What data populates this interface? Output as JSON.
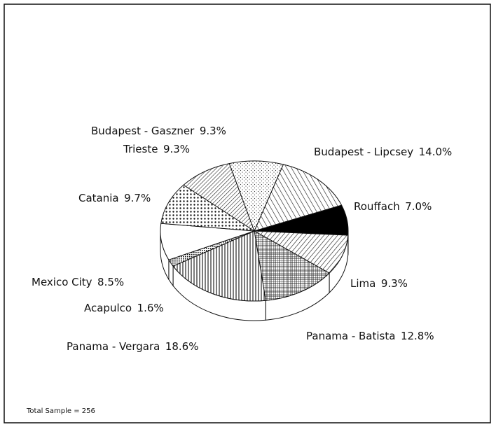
{
  "chart_data": {
    "type": "pie",
    "categories": [
      "Budapest - Lipcsey",
      "Rouffach",
      "Lima",
      "Panama - Batista",
      "Panama - Vergara",
      "Acapulco",
      "Mexico City",
      "Catania",
      "Trieste",
      "Budapest - Gaszner"
    ],
    "values": [
      14.0,
      7.0,
      9.3,
      12.8,
      18.6,
      1.6,
      8.5,
      9.7,
      9.3,
      9.3
    ],
    "value_labels": [
      "14.0%",
      "7.0%",
      "9.3%",
      "12.8%",
      "18.6%",
      "1.6%",
      "8.5%",
      "9.7%",
      "9.3%",
      "9.3%"
    ],
    "note": "Total Sample = 256"
  }
}
